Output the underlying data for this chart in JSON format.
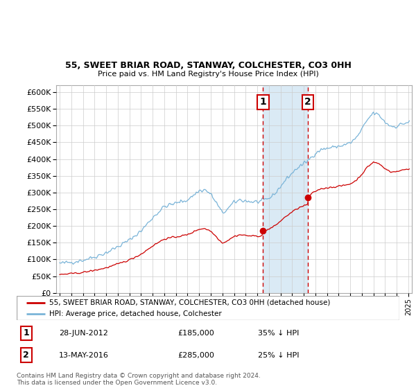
{
  "title1": "55, SWEET BRIAR ROAD, STANWAY, COLCHESTER, CO3 0HH",
  "title2": "Price paid vs. HM Land Registry's House Price Index (HPI)",
  "legend_line1": "55, SWEET BRIAR ROAD, STANWAY, COLCHESTER, CO3 0HH (detached house)",
  "legend_line2": "HPI: Average price, detached house, Colchester",
  "annotation1_date": "28-JUN-2012",
  "annotation1_price": "£185,000",
  "annotation1_hpi": "35% ↓ HPI",
  "annotation2_date": "13-MAY-2016",
  "annotation2_price": "£285,000",
  "annotation2_hpi": "25% ↓ HPI",
  "footer": "Contains HM Land Registry data © Crown copyright and database right 2024.\nThis data is licensed under the Open Government Licence v3.0.",
  "hpi_color": "#7ab4d8",
  "price_color": "#cc0000",
  "annotation_box_color": "#cc0000",
  "shaded_region_color": "#daeaf5",
  "grid_color": "#cccccc",
  "ylim": [
    0,
    620000
  ],
  "yticks": [
    0,
    50000,
    100000,
    150000,
    200000,
    250000,
    300000,
    350000,
    400000,
    450000,
    500000,
    550000,
    600000
  ],
  "sale1_year": 2012.49,
  "sale2_year": 2016.36,
  "sale1_price": 185000,
  "sale2_price": 285000
}
